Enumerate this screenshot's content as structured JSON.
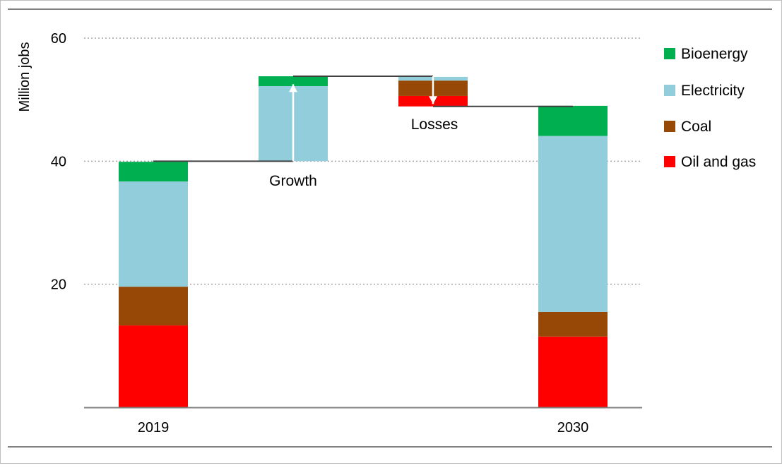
{
  "chart_data": {
    "type": "bar",
    "subtype": "waterfall-stacked",
    "ylabel": "Million jobs",
    "ylim": [
      0,
      60
    ],
    "yticks": [
      20,
      40,
      60
    ],
    "gridlines": "dotted-horizontal",
    "legend_position": "right",
    "colors": {
      "Bioenergy": "#00b050",
      "Electricity": "#92cddc",
      "Coal": "#984806",
      "Oil and gas": "#ff0000",
      "connector": "#404040",
      "axis": "#7f7f7f"
    },
    "legend": [
      "Bioenergy",
      "Electricity",
      "Coal",
      "Oil and gas"
    ],
    "bars": [
      {
        "label": "2019",
        "kind": "total",
        "segments": [
          {
            "series": "Oil and gas",
            "from": 0,
            "to": 13.3
          },
          {
            "series": "Coal",
            "from": 13.3,
            "to": 19.6
          },
          {
            "series": "Electricity",
            "from": 19.6,
            "to": 36.7
          },
          {
            "series": "Bioenergy",
            "from": 36.7,
            "to": 39.9
          }
        ]
      },
      {
        "label": "",
        "kind": "increase",
        "annotation": "Growth",
        "segments": [
          {
            "series": "Electricity",
            "from": 40.0,
            "to": 52.2
          },
          {
            "series": "Bioenergy",
            "from": 52.2,
            "to": 53.8
          }
        ]
      },
      {
        "label": "",
        "kind": "decrease",
        "annotation": "Losses",
        "segments": [
          {
            "series": "Oil and gas",
            "from": 48.9,
            "to": 50.6
          },
          {
            "series": "Coal",
            "from": 50.6,
            "to": 53.1
          },
          {
            "series": "Electricity",
            "from": 53.1,
            "to": 53.7
          }
        ]
      },
      {
        "label": "2030",
        "kind": "total",
        "segments": [
          {
            "series": "Oil and gas",
            "from": 0,
            "to": 11.5
          },
          {
            "series": "Coal",
            "from": 11.5,
            "to": 15.5
          },
          {
            "series": "Electricity",
            "from": 15.5,
            "to": 44.1
          },
          {
            "series": "Bioenergy",
            "from": 44.1,
            "to": 49.0
          }
        ]
      }
    ],
    "connectors": [
      {
        "from_bar": 0,
        "to_bar": 1,
        "y": 40.0
      },
      {
        "from_bar": 1,
        "to_bar": 2,
        "y": 53.8
      },
      {
        "from_bar": 2,
        "to_bar": 3,
        "y": 48.9
      }
    ],
    "arrows": [
      {
        "bar": 1,
        "direction": "up",
        "from": 40.0,
        "to": 52.5
      },
      {
        "bar": 2,
        "direction": "down",
        "from": 53.8,
        "to": 49.3
      }
    ]
  }
}
